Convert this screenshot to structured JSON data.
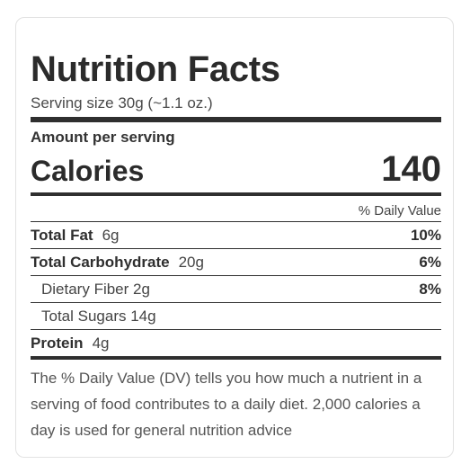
{
  "panel": {
    "title": "Nutrition Facts",
    "serving_size": "Serving size 30g (~1.1 oz.)",
    "amount_per_serving": "Amount per serving",
    "calories_label": "Calories",
    "calories_value": "140",
    "daily_value_header": "% Daily Value",
    "nutrients": [
      {
        "name": "Total Fat",
        "amount": "6g",
        "dv": "10%"
      },
      {
        "name": "Total Carbohydrate",
        "amount": "20g",
        "dv": "6%"
      },
      {
        "name": "Dietary Fiber 2g",
        "dv": "8%"
      },
      {
        "name": "Total Sugars 14g",
        "dv": ""
      },
      {
        "name": "Protein",
        "amount": "4g",
        "dv": ""
      }
    ],
    "footnote": "The % Daily Value (DV) tells you how much a nutrient in a serving of food contributes to a daily diet. 2,000 calories a day is used for general nutrition advice"
  }
}
